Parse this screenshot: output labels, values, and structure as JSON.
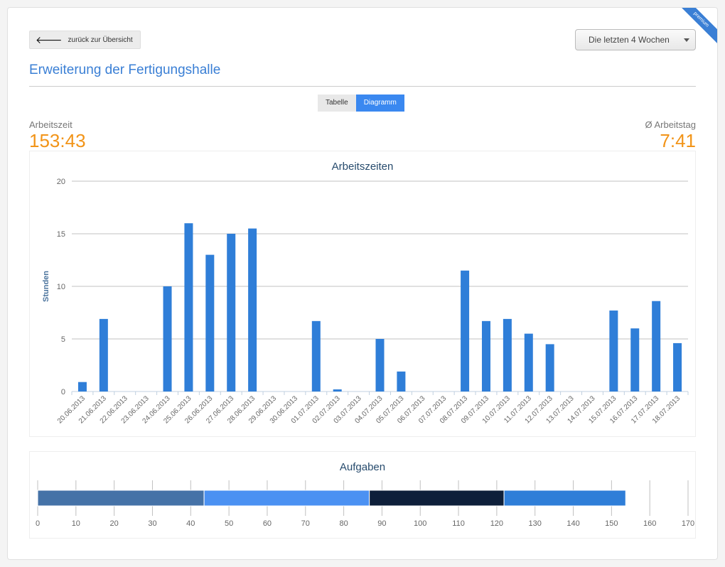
{
  "ribbon": "premium",
  "back_label": "zurück zur Übersicht",
  "range_select": "Die letzten 4 Wochen",
  "page_title": "Erweiterung der Fertigungshalle",
  "view_toggle": {
    "table": "Tabelle",
    "chart": "Diagramm",
    "active": "Diagramm"
  },
  "stats": {
    "work_label": "Arbeitszeit",
    "work_value": "153:43",
    "avg_label": "Ø Arbeitstag",
    "avg_value": "7:41"
  },
  "colors": {
    "accent": "#3a7fd5",
    "bar": "#2f7ed8",
    "orange": "#f29418"
  },
  "chart_data": [
    {
      "type": "bar",
      "title": "Arbeitszeiten",
      "ylabel": "Stunden",
      "xlabel": "",
      "ylim": [
        0,
        20
      ],
      "yticks": [
        0,
        5,
        10,
        15,
        20
      ],
      "grid": true,
      "categories": [
        "20.06.2013",
        "21.06.2013",
        "22.06.2013",
        "23.06.2013",
        "24.06.2013",
        "25.06.2013",
        "26.06.2013",
        "27.06.2013",
        "28.06.2013",
        "29.06.2013",
        "30.06.2013",
        "01.07.2013",
        "02.07.2013",
        "03.07.2013",
        "04.07.2013",
        "05.07.2013",
        "06.07.2013",
        "07.07.2013",
        "08.07.2013",
        "09.07.2013",
        "10.07.2013",
        "11.07.2013",
        "12.07.2013",
        "13.07.2013",
        "14.07.2013",
        "15.07.2013",
        "16.07.2013",
        "17.07.2013",
        "18.07.2013"
      ],
      "values": [
        0.9,
        6.9,
        0,
        0,
        10,
        16,
        13,
        15,
        15.5,
        0,
        0,
        6.7,
        0.2,
        0,
        5,
        1.9,
        0,
        0,
        11.5,
        6.7,
        6.9,
        5.5,
        4.5,
        0,
        0,
        7.7,
        6,
        8.6,
        4.6
      ],
      "color": "#2f7ed8"
    },
    {
      "type": "bar",
      "orientation": "horizontal-stacked",
      "title": "Aufgaben",
      "xlim": [
        0,
        170
      ],
      "xticks": [
        0,
        10,
        20,
        30,
        40,
        50,
        60,
        70,
        80,
        90,
        100,
        110,
        120,
        130,
        140,
        150,
        160,
        170
      ],
      "series": [
        {
          "value": 43.5,
          "color": "#4572a7"
        },
        {
          "value": 43.2,
          "color": "#4b91f2"
        },
        {
          "value": 35.2,
          "color": "#0e1f3a"
        },
        {
          "value": 31.8,
          "color": "#2f7ed8"
        }
      ]
    }
  ]
}
